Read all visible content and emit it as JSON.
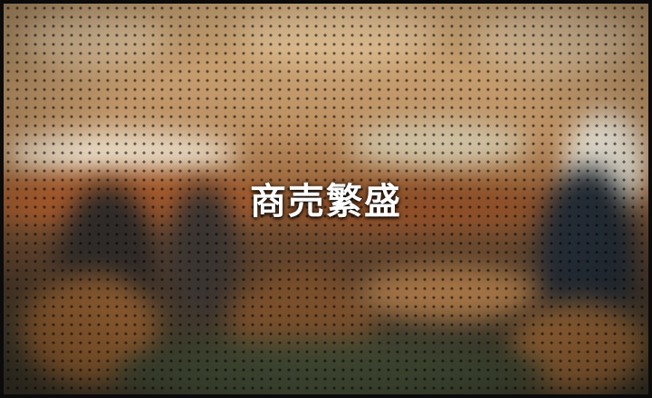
{
  "headline": "商売繁盛",
  "colors": {
    "frame": "#0b0b0b",
    "wall_light": "#c9a475",
    "wall_band": "#9c6a3f",
    "floor": "#3f3a2c",
    "text": "#ffffff"
  }
}
